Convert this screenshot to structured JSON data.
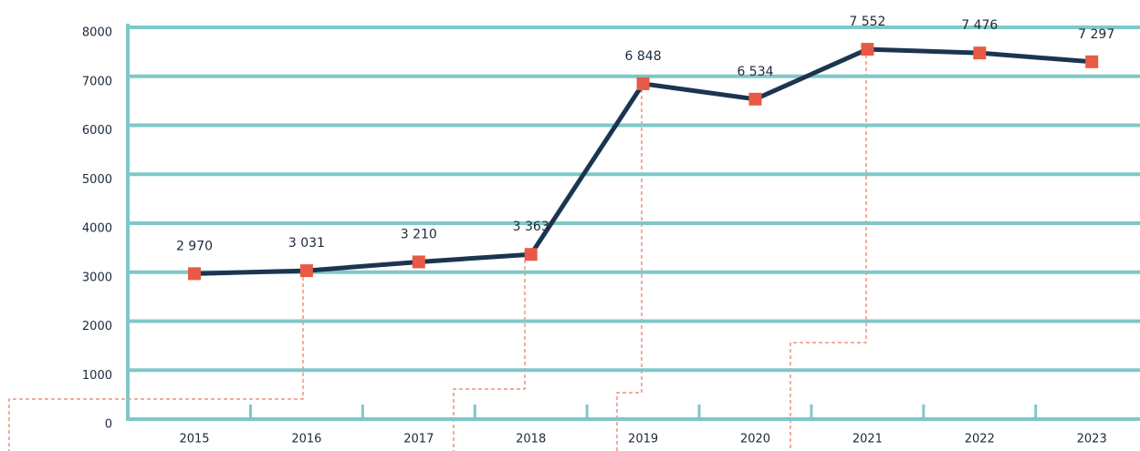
{
  "chart_data": {
    "type": "line",
    "categories": [
      "2015",
      "2016",
      "2017",
      "2018",
      "2019",
      "2020",
      "2021",
      "2022",
      "2023"
    ],
    "values": [
      2970,
      3031,
      3210,
      3363,
      6848,
      6534,
      7552,
      7476,
      7297
    ],
    "value_labels": [
      "2 970",
      "3 031",
      "3 210",
      "3 363",
      "6 848",
      "6 534",
      "7 552",
      "7 476",
      "7 297"
    ],
    "color": "#1b3550",
    "marker_color": "#e85a45",
    "grid_color": "#7ec8c8",
    "ylim": [
      0,
      8000
    ],
    "yticks": [
      0,
      1000,
      2000,
      3000,
      4000,
      5000,
      6000,
      7000,
      8000
    ],
    "grid": true
  }
}
